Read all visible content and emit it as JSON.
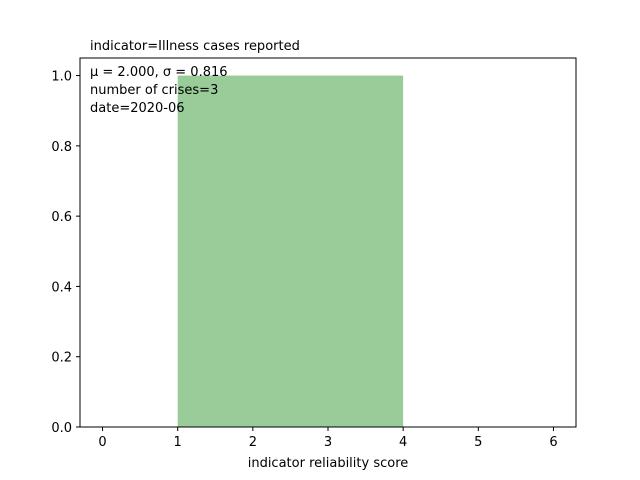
{
  "chart_data": {
    "type": "bar",
    "title": "indicator=Illness cases reported",
    "xlabel": "indicator reliability score",
    "ylabel": "",
    "xlim": [
      -0.3,
      6.3
    ],
    "ylim": [
      0,
      1.05
    ],
    "xticks": [
      0,
      1,
      2,
      3,
      4,
      5,
      6
    ],
    "yticks": [
      0.0,
      0.2,
      0.4,
      0.6,
      0.8,
      1.0
    ],
    "xtick_labels": [
      "0",
      "1",
      "2",
      "3",
      "4",
      "5",
      "6"
    ],
    "ytick_labels": [
      "0.0",
      "0.2",
      "0.4",
      "0.6",
      "0.8",
      "1.0"
    ],
    "bars": [
      {
        "x0": 1,
        "x1": 4,
        "value": 1.0
      }
    ],
    "annotations": [
      "μ = 2.000,  σ = 0.816",
      "number of crises=3",
      "date=2020-06"
    ],
    "grid": false,
    "colors": {
      "bar": "#99cc99",
      "axis": "#000000"
    }
  }
}
